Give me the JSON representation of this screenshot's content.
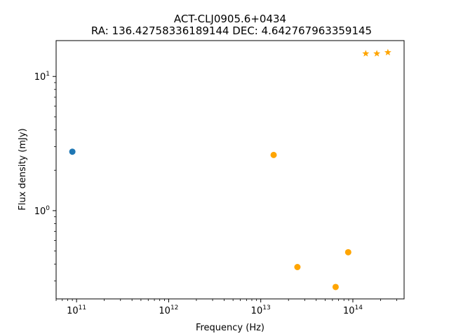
{
  "chart_data": {
    "type": "scatter",
    "title": "ACT-CLJ0905.6+0434",
    "subtitle": "RA: 136.42758336189144 DEC: 4.642767963359145",
    "xlabel": "Frequency (Hz)",
    "ylabel": "Flux density (mJy)",
    "x_scale": "log",
    "y_scale": "log",
    "xlim": [
      60000000000.0,
      360000000000.0
    ],
    "ylim": [
      0.22,
      18.5
    ],
    "xlim_full": [
      60000000000.0,
      360000000000000.0
    ],
    "grid": false,
    "x_ticks": [
      {
        "value": 100000000000.0,
        "base": "10",
        "exp": "11"
      },
      {
        "value": 1000000000000.0,
        "base": "10",
        "exp": "12"
      },
      {
        "value": 10000000000000.0,
        "base": "10",
        "exp": "13"
      },
      {
        "value": 100000000000000.0,
        "base": "10",
        "exp": "14"
      }
    ],
    "y_ticks": [
      {
        "value": 1,
        "base": "10",
        "exp": "0"
      },
      {
        "value": 10,
        "base": "10",
        "exp": "1"
      }
    ],
    "series": [
      {
        "marker": "circle",
        "color": "#1f77b4",
        "points": [
          {
            "x": 90000000000.0,
            "y": 2.75
          }
        ]
      },
      {
        "marker": "circle",
        "color": "#ffa500",
        "points": [
          {
            "x": 13800000000000.0,
            "y": 2.6
          },
          {
            "x": 25000000000000.0,
            "y": 0.38
          },
          {
            "x": 65000000000000.0,
            "y": 0.27
          },
          {
            "x": 89000000000000.0,
            "y": 0.49
          }
        ]
      },
      {
        "marker": "star",
        "color": "#ffa500",
        "points": [
          {
            "x": 138000000000000.0,
            "y": 14.8
          },
          {
            "x": 182000000000000.0,
            "y": 14.8
          },
          {
            "x": 240000000000000.0,
            "y": 15.1
          }
        ]
      }
    ]
  }
}
